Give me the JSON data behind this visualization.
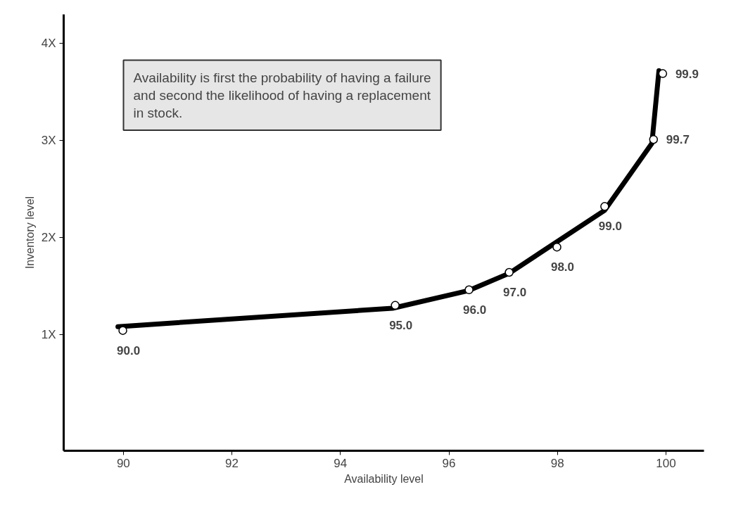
{
  "chart_data": {
    "type": "line",
    "xlabel": "Availability level",
    "ylabel": "Inventory level",
    "xlim": [
      88.9,
      100.7
    ],
    "xticks": [
      90,
      92,
      94,
      96,
      98,
      100
    ],
    "ylim": [
      -0.2,
      4.3
    ],
    "yticks": [
      {
        "value": 1,
        "label": "1X"
      },
      {
        "value": 2,
        "label": "2X"
      },
      {
        "value": 3,
        "label": "3X"
      },
      {
        "value": 4,
        "label": "4X"
      }
    ],
    "grid": false,
    "series": [
      {
        "color": "#000000",
        "marker": "none",
        "x": [
          89.9,
          94.96,
          96.35,
          97.11,
          98.87,
          99.74,
          99.87
        ],
        "values": [
          1.08,
          1.27,
          1.45,
          1.63,
          2.28,
          2.97,
          3.72
        ]
      },
      {
        "type": "scatter",
        "color": "#000000",
        "marker": "circle",
        "x": [
          89.99,
          95.01,
          96.37,
          97.11,
          97.99,
          98.87,
          99.77,
          99.94
        ],
        "values": [
          1.04,
          1.3,
          1.46,
          1.64,
          1.9,
          2.32,
          3.01,
          3.69
        ]
      }
    ],
    "annotations": [
      "Availability is first the probability of having a failure\nand second the likelihood of having a replacement\nin stock.",
      {
        "text": "90.0",
        "x": 89.99,
        "y": 1.04
      },
      {
        "text": "95.0",
        "x": 95.01,
        "y": 1.3
      },
      {
        "text": "96.0",
        "x": 96.37,
        "y": 1.46
      },
      {
        "text": "97.0",
        "x": 97.11,
        "y": 1.64
      },
      {
        "text": "98.0",
        "x": 97.99,
        "y": 1.9
      },
      {
        "text": "99.0",
        "x": 98.87,
        "y": 2.32
      },
      {
        "text": "99.7",
        "x": 99.77,
        "y": 3.01
      },
      {
        "text": "99.9",
        "x": 99.94,
        "y": 3.69
      }
    ]
  }
}
